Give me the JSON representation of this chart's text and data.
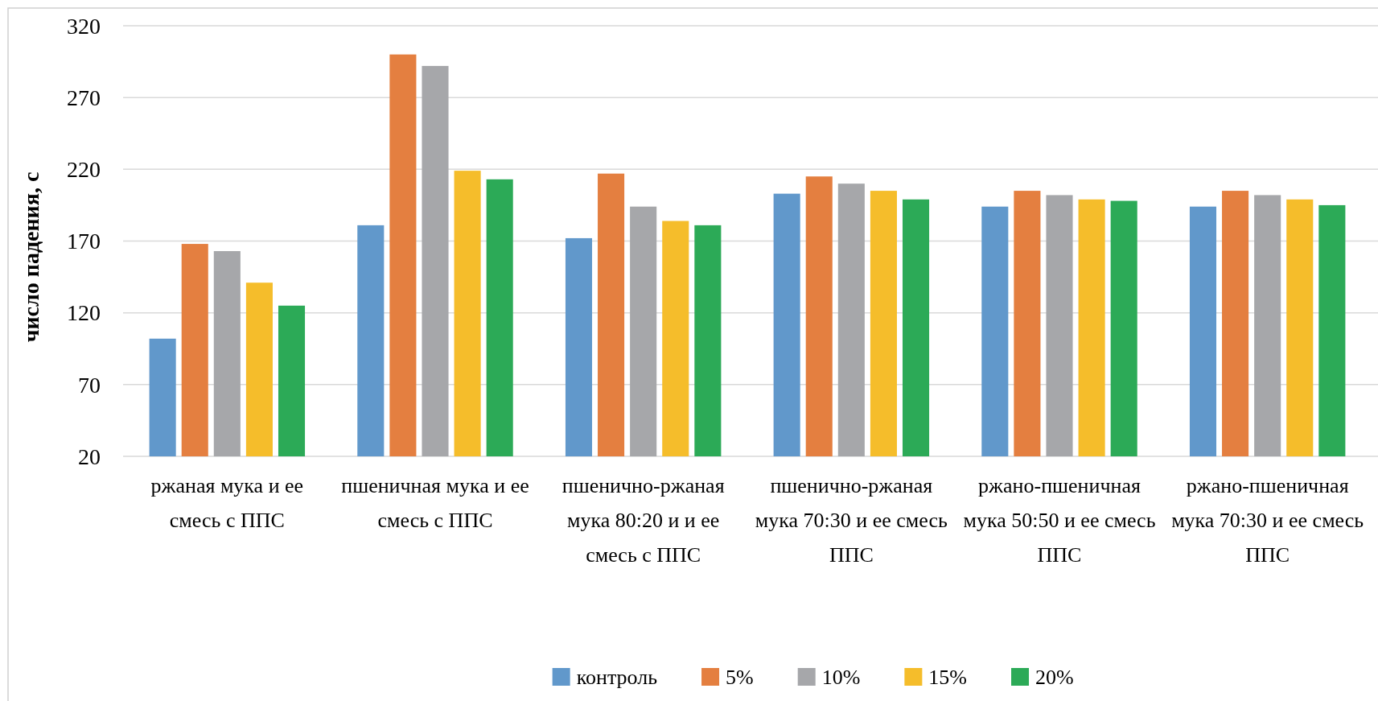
{
  "chart_data": {
    "type": "bar",
    "ylabel": "число падения, с",
    "categories": [
      "ржаная мука и ее смесь с ППС",
      "пшеничная мука и ее смесь с ППС",
      "пшенично-ржаная мука 80:20 и и ее смесь с ППС",
      "пшенично-ржаная мука 70:30 и ее смесь ППС",
      "ржано-пшеничная мука 50:50 и ее смесь ППС",
      "ржано-пшеничная мука 70:30 и ее смесь ППС"
    ],
    "series": [
      {
        "name": "контроль",
        "color": "#6198cb",
        "values": [
          102,
          181,
          172,
          203,
          194,
          194
        ]
      },
      {
        "name": "5%",
        "color": "#e47f40",
        "values": [
          168,
          300,
          217,
          215,
          205,
          205
        ]
      },
      {
        "name": "10%",
        "color": "#a6a7aa",
        "values": [
          163,
          292,
          194,
          210,
          202,
          202
        ]
      },
      {
        "name": "15%",
        "color": "#f5bd2b",
        "values": [
          141,
          219,
          184,
          205,
          199,
          199
        ]
      },
      {
        "name": "20%",
        "color": "#2caa57",
        "values": [
          125,
          213,
          181,
          199,
          198,
          195
        ]
      }
    ],
    "ylim": [
      20,
      320
    ],
    "yticks": [
      20,
      70,
      120,
      170,
      220,
      270,
      320
    ],
    "grid": "y",
    "legend": "bottom"
  }
}
